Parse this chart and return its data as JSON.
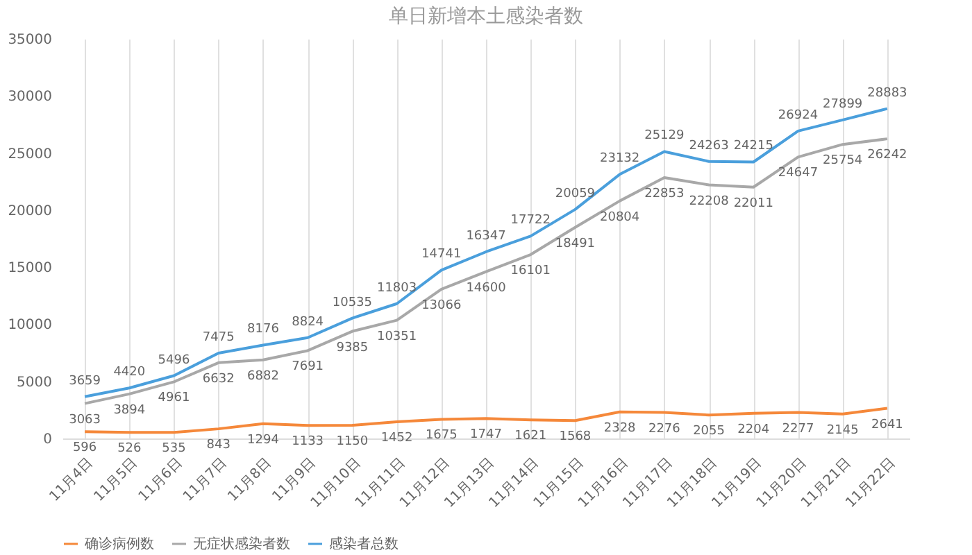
{
  "chart_data": {
    "type": "line",
    "title": "单日新增本土感染者数",
    "categories": [
      "11月4日",
      "11月5日",
      "11月6日",
      "11月7日",
      "11月8日",
      "11月9日",
      "11月10日",
      "11月11日",
      "11月12日",
      "11月13日",
      "11月14日",
      "11月15日",
      "11月16日",
      "11月17日",
      "11月18日",
      "11月19日",
      "11月20日",
      "11月21日",
      "11月22日"
    ],
    "series": [
      {
        "name": "确诊病例数",
        "color": "#f5883a",
        "values": [
          596,
          526,
          535,
          843,
          1294,
          1133,
          1150,
          1452,
          1675,
          1747,
          1621,
          1568,
          2328,
          2276,
          2055,
          2204,
          2277,
          2145,
          2641
        ]
      },
      {
        "name": "无症状感染者数",
        "color": "#a8a8a8",
        "values": [
          3063,
          3894,
          4961,
          6632,
          6882,
          7691,
          9385,
          10351,
          13066,
          14600,
          16101,
          18491,
          20804,
          22853,
          22208,
          22011,
          24647,
          25754,
          26242
        ]
      },
      {
        "name": "感染者总数",
        "color": "#4a9fdc",
        "values": [
          3659,
          4420,
          5496,
          7475,
          8176,
          8824,
          10535,
          11803,
          14741,
          16347,
          17722,
          20059,
          23132,
          25129,
          24263,
          24215,
          26924,
          27899,
          28883
        ]
      }
    ],
    "ylim": [
      0,
      35000
    ],
    "yticks": [
      0,
      5000,
      10000,
      15000,
      20000,
      25000,
      30000,
      35000
    ],
    "grid": "x",
    "legend": "bottom",
    "data_labels": true,
    "marker": "none",
    "line_style": "solid"
  }
}
